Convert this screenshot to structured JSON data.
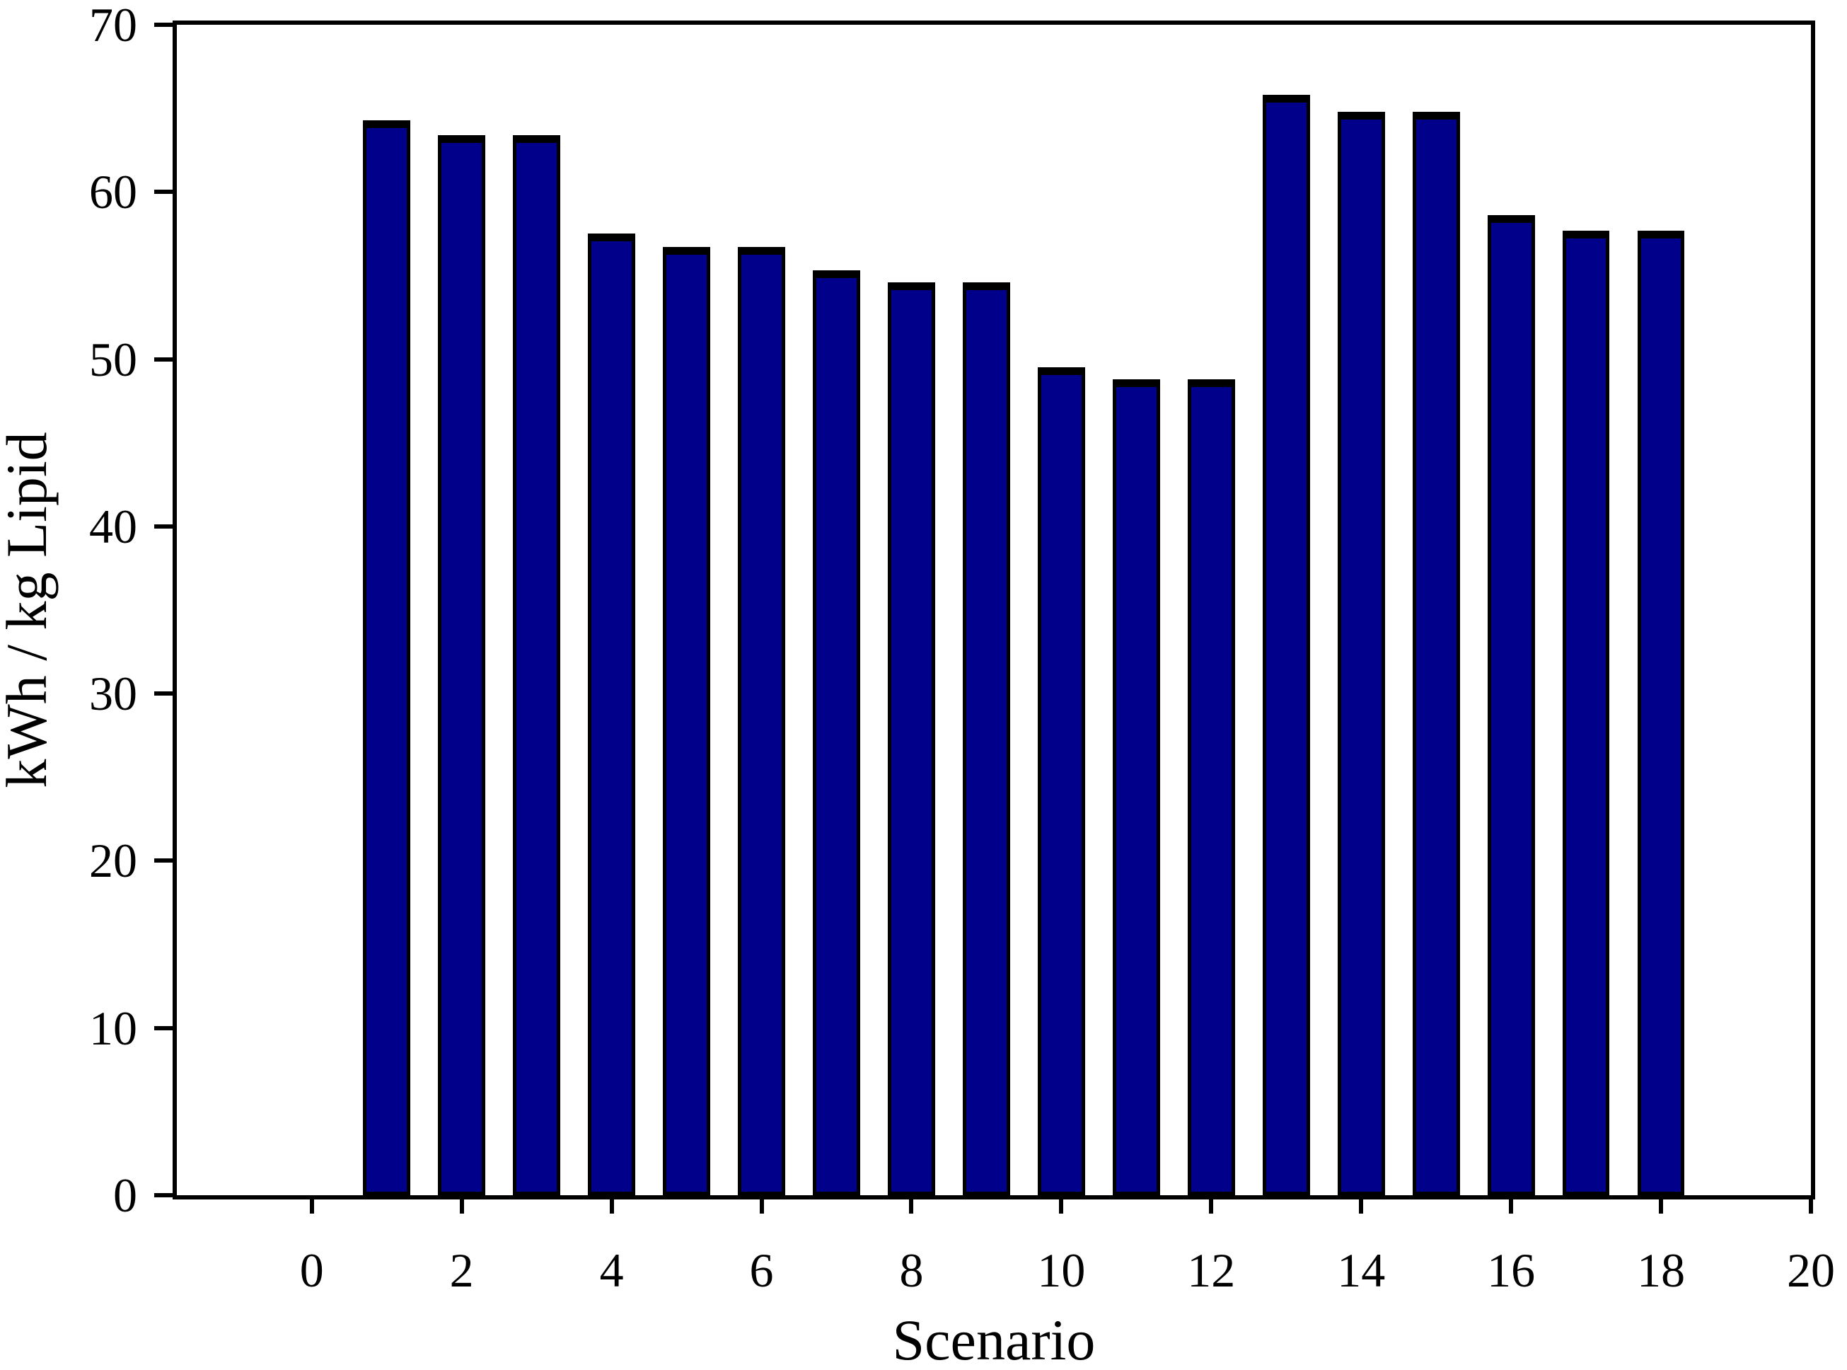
{
  "page": {
    "background_color": "#ffffff",
    "text_color": "#000000"
  },
  "chart_data": {
    "type": "bar",
    "title": "",
    "xlabel": "Scenario",
    "ylabel": "kWh / kg Lipid",
    "categories": [
      1,
      2,
      3,
      4,
      5,
      6,
      7,
      8,
      9,
      10,
      11,
      12,
      13,
      14,
      15,
      16,
      17,
      18
    ],
    "values": [
      64.3,
      63.4,
      63.4,
      57.5,
      56.7,
      56.7,
      55.3,
      54.6,
      54.6,
      49.5,
      48.8,
      48.8,
      65.8,
      64.8,
      64.8,
      58.6,
      57.7,
      57.7
    ],
    "xlim": [
      -1.8,
      20.0
    ],
    "ylim": [
      0,
      70
    ],
    "xticks": [
      0,
      2,
      4,
      6,
      8,
      10,
      12,
      14,
      16,
      18,
      20
    ],
    "yticks": [
      0,
      10,
      20,
      30,
      40,
      50,
      60,
      70
    ],
    "bar_width_units": 0.63,
    "bar_fill_color": "#00008B",
    "bar_edge_color": "#000000",
    "axis_color": "#000000",
    "frame_box": true,
    "grid": false,
    "legend": false,
    "tick_direction": "out"
  }
}
